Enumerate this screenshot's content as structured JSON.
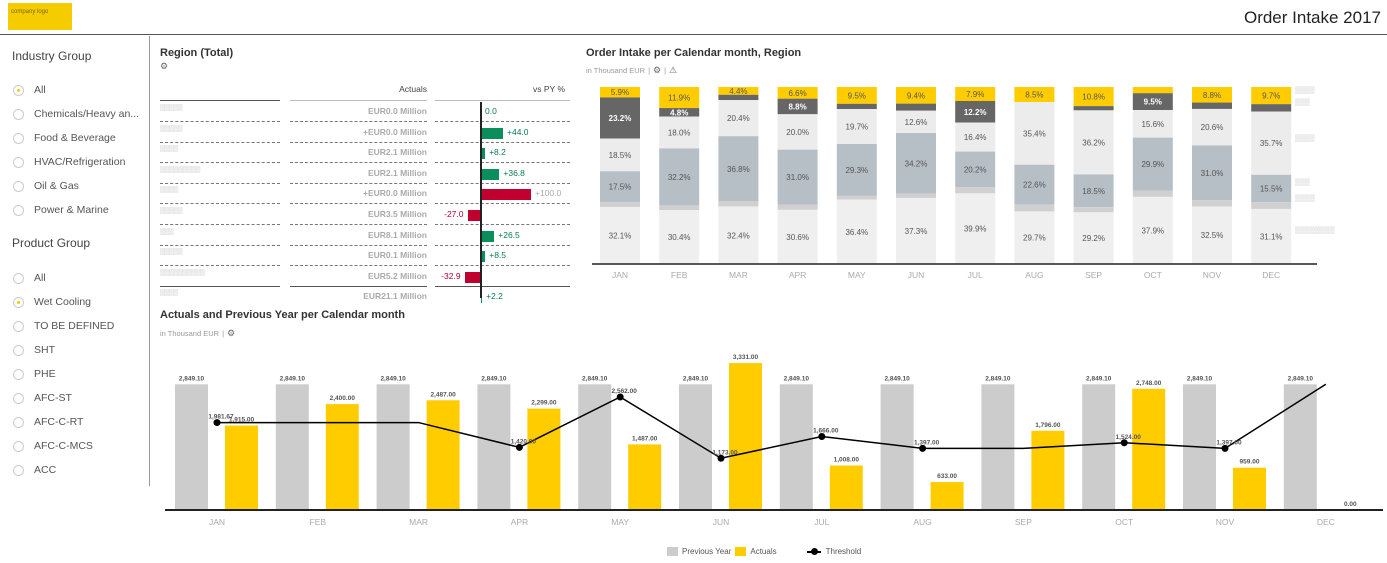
{
  "header": {
    "logo_text": "company logo",
    "title": "Order Intake 2017"
  },
  "sidebar": {
    "industry_group": {
      "title": "Industry Group",
      "items": [
        {
          "label": "All",
          "selected": true
        },
        {
          "label": "Chemicals/Heavy an...",
          "selected": false
        },
        {
          "label": "Food & Beverage",
          "selected": false
        },
        {
          "label": "HVAC/Refrigeration",
          "selected": false
        },
        {
          "label": "Oil & Gas",
          "selected": false
        },
        {
          "label": "Power & Marine",
          "selected": false
        }
      ]
    },
    "product_group": {
      "title": "Product Group",
      "items": [
        {
          "label": "All",
          "selected": false
        },
        {
          "label": "Wet Cooling",
          "selected": true
        },
        {
          "label": "TO BE DEFINED",
          "selected": false
        },
        {
          "label": "SHT",
          "selected": false
        },
        {
          "label": "PHE",
          "selected": false
        },
        {
          "label": "AFC-ST",
          "selected": false
        },
        {
          "label": "AFC-C-RT",
          "selected": false
        },
        {
          "label": "AFC-C-MCS",
          "selected": false
        },
        {
          "label": "ACC",
          "selected": false
        }
      ]
    }
  },
  "region_table": {
    "title": "Region (Total)",
    "icon": "gear-icon",
    "col_actuals": "Actuals",
    "col_vs_py": "vs PY %",
    "rows": [
      {
        "name": "▒▒▒▒▒",
        "actual": "EUR0.0 Million",
        "vs_py": 0.0,
        "vs_py_label": "0.0"
      },
      {
        "name": "▒▒▒▒▒",
        "actual": "+EUR0.0 Million",
        "vs_py": 44.0,
        "vs_py_label": "+44.0"
      },
      {
        "name": "▒▒▒▒",
        "actual": "EUR2.1 Million",
        "vs_py": 8.2,
        "vs_py_label": "+8.2"
      },
      {
        "name": "▒▒▒▒▒▒▒▒▒",
        "actual": "EUR2.1 Million",
        "vs_py": 36.8,
        "vs_py_label": "+36.8"
      },
      {
        "name": "▒▒▒▒",
        "actual": "+EUR0.0 Million",
        "vs_py": 100.0,
        "vs_py_label": "+100.0",
        "muted": true
      },
      {
        "name": "▒▒▒▒▒",
        "actual": "EUR3.5 Million",
        "vs_py": -27.0,
        "vs_py_label": "-27.0"
      },
      {
        "name": "▒▒▒",
        "actual": "EUR8.1 Million",
        "vs_py": 26.5,
        "vs_py_label": "+26.5"
      },
      {
        "name": "▒▒▒▒▒",
        "actual": "EUR0.1 Million",
        "vs_py": 8.5,
        "vs_py_label": "+8.5"
      },
      {
        "name": "▒▒▒▒▒▒▒▒▒▒",
        "actual": "EUR5.2 Million",
        "vs_py": -32.9,
        "vs_py_label": "-32.9"
      },
      {
        "name": "▒▒▒▒",
        "actual": "EUR21.1 Million",
        "vs_py": 2.2,
        "vs_py_label": "+2.2",
        "total": true
      }
    ],
    "colors": {
      "positive": "#0a8f5c",
      "negative": "#c0002e",
      "positive_text": "#0a7a50",
      "negative_text": "#b0002a"
    }
  },
  "chart_data": [
    {
      "type": "bar",
      "stacked": "percent",
      "title": "Order Intake per Calendar month, Region",
      "subtitle": "in Thousand EUR",
      "categories": [
        "JAN",
        "FEB",
        "MAR",
        "APR",
        "MAY",
        "JUN",
        "JUL",
        "AUG",
        "SEP",
        "OCT",
        "NOV",
        "DEC"
      ],
      "series": [
        {
          "name": "Region 1 (redacted)",
          "color": "#ffcc00",
          "values": [
            5.9,
            11.9,
            4.4,
            6.6,
            9.5,
            9.4,
            7.9,
            8.5,
            10.8,
            3.5,
            8.8,
            9.7
          ],
          "labels": [
            "5.9%",
            "11.9%",
            "4.4%",
            "6.6%",
            "9.5%",
            "9.4%",
            "7.9%",
            "8.5%",
            "10.8%",
            "",
            "8.8%",
            "9.7%"
          ]
        },
        {
          "name": "Region 2 (redacted)",
          "color": "#666666",
          "values": [
            23.2,
            4.8,
            3.0,
            8.8,
            3.0,
            4.0,
            12.2,
            0.0,
            2.4,
            9.5,
            3.6,
            4.2
          ],
          "labels": [
            "23.2%",
            "4.8%",
            "",
            "8.8%",
            "",
            "",
            "12.2%",
            "",
            "",
            "9.5%",
            "",
            ""
          ]
        },
        {
          "name": "Region 3 (redacted)",
          "color": "#ececec",
          "values": [
            18.5,
            18.0,
            20.4,
            20.0,
            19.7,
            12.6,
            16.4,
            35.4,
            36.2,
            15.6,
            20.6,
            35.7
          ],
          "labels": [
            "18.5%",
            "18.0%",
            "20.4%",
            "20.0%",
            "19.7%",
            "12.6%",
            "16.4%",
            "35.4%",
            "36.2%",
            "15.6%",
            "20.6%",
            "35.7%"
          ]
        },
        {
          "name": "Region 4 (redacted)",
          "color": "#b6bec6",
          "values": [
            17.5,
            32.2,
            36.8,
            31.0,
            29.3,
            34.2,
            20.2,
            22.6,
            18.5,
            29.9,
            31.0,
            15.5
          ],
          "labels": [
            "17.5%",
            "32.2%",
            "36.8%",
            "31.0%",
            "29.3%",
            "34.2%",
            "20.2%",
            "22.6%",
            "18.5%",
            "29.9%",
            "31.0%",
            "15.5%"
          ]
        },
        {
          "name": "Region 5 (redacted)",
          "color": "#d0d0d0",
          "values": [
            2.8,
            2.7,
            3.0,
            3.0,
            2.1,
            2.5,
            3.4,
            3.8,
            2.9,
            3.6,
            3.5,
            3.8
          ],
          "labels": [
            "",
            "",
            "",
            "",
            "",
            "",
            "",
            "",
            "",
            "",
            "",
            ""
          ]
        },
        {
          "name": "Region 6 (redacted)",
          "color": "#efefef",
          "values": [
            32.1,
            30.4,
            32.4,
            30.6,
            36.4,
            37.3,
            39.9,
            29.7,
            29.2,
            37.9,
            32.5,
            31.1
          ],
          "labels": [
            "32.1%",
            "30.4%",
            "32.4%",
            "30.6%",
            "36.4%",
            "37.3%",
            "39.9%",
            "29.7%",
            "29.2%",
            "37.9%",
            "32.5%",
            "31.1%"
          ]
        }
      ],
      "ylim": [
        0,
        100
      ],
      "legend": "right (redacted labels)"
    },
    {
      "type": "bar",
      "title": "Actuals and Previous Year per Calendar month",
      "subtitle": "in Thousand EUR",
      "categories": [
        "JAN",
        "FEB",
        "MAR",
        "APR",
        "MAY",
        "JUN",
        "JUL",
        "AUG",
        "SEP",
        "OCT",
        "NOV",
        "DEC"
      ],
      "series": [
        {
          "name": "Previous Year",
          "type": "bar",
          "color": "#cccccc",
          "values": [
            2849.1,
            2849.1,
            2849.1,
            2849.1,
            2849.1,
            2849.1,
            2849.1,
            2849.1,
            2849.1,
            2849.1,
            2849.1,
            2849.1
          ],
          "labels": [
            "2,849.10",
            "2,849.10",
            "2,849.10",
            "2,849.10",
            "2,849.10",
            "2,849.10",
            "2,849.10",
            "2,849.10",
            "2,849.10",
            "2,849.10",
            "2,849.10",
            "2,849.10"
          ]
        },
        {
          "name": "Actuals",
          "type": "bar",
          "color": "#ffcc00",
          "values": [
            1915.0,
            2400.0,
            2487.0,
            2299.0,
            1487.0,
            3331.0,
            1008.0,
            633.0,
            1796.0,
            2748.0,
            959.0,
            0.0
          ],
          "labels": [
            "1,915.00",
            "2,400.00",
            "2,487.00",
            "2,299.00",
            "1,487.00",
            "3,331.00",
            "1,008.00",
            "633.00",
            "1,796.00",
            "2,748.00",
            "959.00",
            "0.00"
          ]
        },
        {
          "name": "Threshold",
          "type": "line",
          "color": "#000000",
          "values": [
            1981.67,
            1981.67,
            1981.67,
            1420.0,
            2562.0,
            1173.0,
            1666.0,
            1397.0,
            1397.0,
            1524.0,
            1397.0,
            2849.1
          ],
          "labels": [
            "1,981.67",
            "",
            "",
            "1,420.00",
            "2,562.00",
            "1,173.00",
            "1,666.00",
            "1,397.00",
            "",
            "1,524.00",
            "1,397.00",
            ""
          ],
          "markers": [
            true,
            false,
            false,
            true,
            true,
            true,
            true,
            true,
            false,
            true,
            true,
            false
          ]
        }
      ],
      "ylim": [
        0,
        3400
      ],
      "legend": "bottom-center"
    }
  ]
}
